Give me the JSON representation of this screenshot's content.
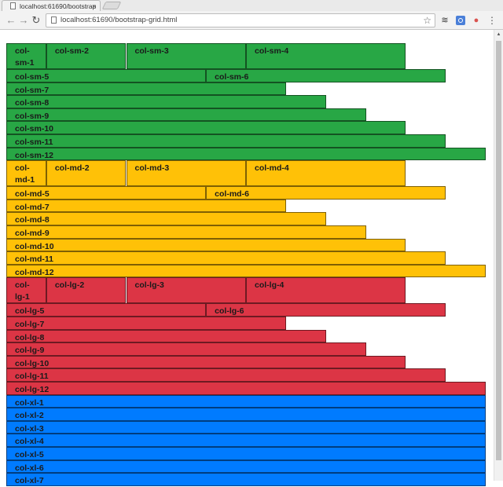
{
  "browser": {
    "tab_title": "localhost:61690/bootstrap",
    "tab_close": "×",
    "url": "localhost:61690/bootstrap-grid.html",
    "back": "←",
    "forward": "→",
    "reload": "↻",
    "star": "☆",
    "menu": "⋮"
  },
  "groups": [
    {
      "key": "sm",
      "color": "#28a745",
      "rows": [
        [
          "col-sm-1",
          "col-sm-2",
          "col-sm-3",
          "col-sm-4"
        ],
        [
          "col-sm-5",
          "col-sm-6"
        ],
        [
          "col-sm-7"
        ],
        [
          "col-sm-8"
        ],
        [
          "col-sm-9"
        ],
        [
          "col-sm-10"
        ],
        [
          "col-sm-11"
        ],
        [
          "col-sm-12"
        ]
      ]
    },
    {
      "key": "md",
      "color": "#ffc107",
      "rows": [
        [
          "col-md-1",
          "col-md-2",
          "col-md-3",
          "col-md-4"
        ],
        [
          "col-md-5",
          "col-md-6"
        ],
        [
          "col-md-7"
        ],
        [
          "col-md-8"
        ],
        [
          "col-md-9"
        ],
        [
          "col-md-10"
        ],
        [
          "col-md-11"
        ],
        [
          "col-md-12"
        ]
      ]
    },
    {
      "key": "lg",
      "color": "#dc3545",
      "rows": [
        [
          "col-lg-1",
          "col-lg-2",
          "col-lg-3",
          "col-lg-4"
        ],
        [
          "col-lg-5",
          "col-lg-6"
        ],
        [
          "col-lg-7"
        ],
        [
          "col-lg-8"
        ],
        [
          "col-lg-9"
        ],
        [
          "col-lg-10"
        ],
        [
          "col-lg-11"
        ],
        [
          "col-lg-12"
        ]
      ]
    },
    {
      "key": "xl",
      "color": "#007bff",
      "rows": [
        [
          "col-xl-1"
        ],
        [
          "col-xl-2"
        ],
        [
          "col-xl-3"
        ],
        [
          "col-xl-4"
        ],
        [
          "col-xl-5"
        ],
        [
          "col-xl-6"
        ],
        [
          "col-xl-7"
        ]
      ]
    }
  ]
}
